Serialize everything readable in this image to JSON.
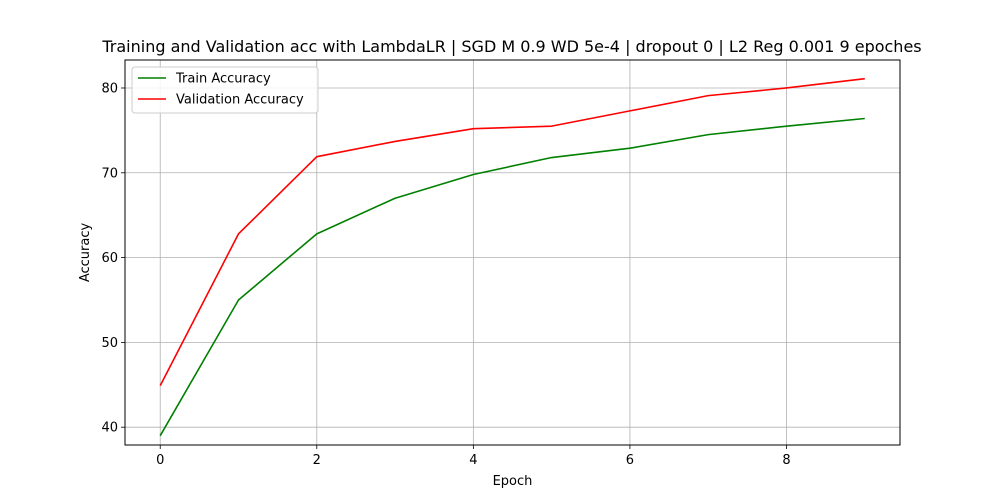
{
  "chart_data": {
    "type": "line",
    "title": "Training and Validation acc with LambdaLR | SGD M 0.9 WD 5e-4 | dropout 0 | L2 Reg 0.001 9 epoches",
    "xlabel": "Epoch",
    "ylabel": "Accuracy",
    "x": [
      0,
      1,
      2,
      3,
      4,
      5,
      6,
      7,
      8,
      9
    ],
    "xlim": [
      -0.45,
      9.45
    ],
    "ylim": [
      37.9,
      83.3
    ],
    "xticks": [
      0,
      2,
      4,
      6,
      8
    ],
    "yticks": [
      40,
      50,
      60,
      70,
      80
    ],
    "grid": true,
    "legend_position": "top-left",
    "series": [
      {
        "name": "Train Accuracy",
        "color": "#008000",
        "values": [
          39.0,
          55.0,
          62.8,
          67.0,
          69.8,
          71.8,
          72.9,
          74.5,
          75.5,
          76.4
        ]
      },
      {
        "name": "Validation Accuracy",
        "color": "#ff0000",
        "values": [
          44.9,
          62.8,
          71.9,
          73.7,
          75.2,
          75.5,
          77.3,
          79.1,
          80.0,
          81.1
        ]
      }
    ]
  }
}
